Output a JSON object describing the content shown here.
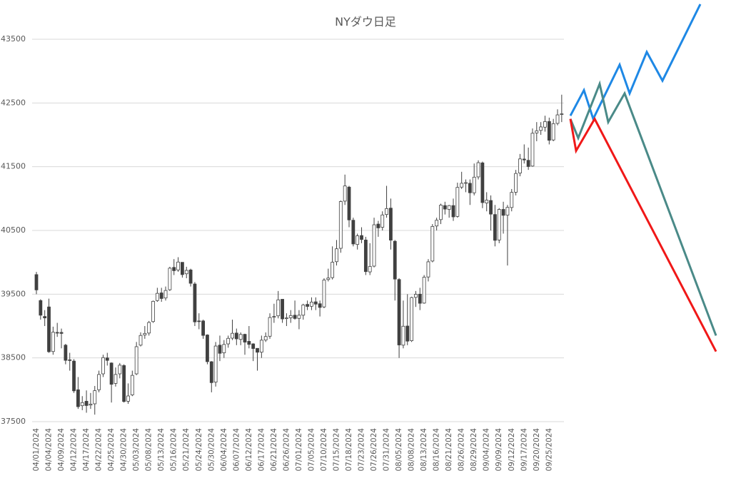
{
  "chart_data": {
    "type": "candlestick",
    "title": "NYダウ日足",
    "categories": [
      "04/01/2024",
      null,
      null,
      "04/04/2024",
      null,
      null,
      "04/09/2024",
      null,
      null,
      "04/12/2024",
      null,
      null,
      "04/17/2024",
      null,
      null,
      "04/22/2024",
      null,
      null,
      "04/25/2024",
      null,
      null,
      "04/30/2024",
      null,
      null,
      "05/03/2024",
      null,
      null,
      "05/08/2024",
      null,
      null,
      "05/13/2024",
      null,
      null,
      "05/16/2024",
      null,
      null,
      "05/21/2024",
      null,
      null,
      "05/24/2024",
      null,
      null,
      "05/30/2024",
      null,
      null,
      "06/04/2024",
      null,
      null,
      "06/07/2024",
      null,
      null,
      "06/12/2024",
      null,
      null,
      "06/17/2024",
      null,
      null,
      "06/21/2024",
      null,
      null,
      "06/26/2024",
      null,
      null,
      "07/01/2024",
      null,
      null,
      "07/05/2024",
      null,
      null,
      "07/10/2024",
      null,
      null,
      "07/15/2024",
      null,
      null,
      "07/18/2024",
      null,
      null,
      "07/23/2024",
      null,
      null,
      "07/26/2024",
      null,
      null,
      "07/31/2024",
      null,
      null,
      "08/05/2024",
      null,
      null,
      "08/08/2024",
      null,
      null,
      "08/13/2024",
      null,
      null,
      "08/16/2024",
      null,
      null,
      "08/21/2024",
      null,
      null,
      "08/26/2024",
      null,
      null,
      "08/29/2024",
      null,
      null,
      "09/04/2024",
      null,
      null,
      "09/09/2024",
      null,
      null,
      "09/12/2024",
      null,
      null,
      "09/17/2024",
      null,
      null,
      "09/20/2024",
      null,
      null,
      "09/25/2024",
      null,
      null,
      null
    ],
    "open": [
      39807,
      39400,
      39150,
      39300,
      38600,
      38900,
      38900,
      38700,
      38470,
      38450,
      38000,
      37750,
      37820,
      37760,
      37780,
      38000,
      38250,
      38500,
      38420,
      38100,
      38250,
      38380,
      37820,
      37920,
      38250,
      38700,
      38860,
      38890,
      39070,
      39400,
      39520,
      39440,
      39570,
      39920,
      39880,
      40000,
      39820,
      39880,
      39660,
      39080,
      39080,
      38860,
      38440,
      38120,
      38700,
      38580,
      38720,
      38810,
      38890,
      38790,
      38870,
      38760,
      38720,
      38650,
      38590,
      38780,
      38840,
      39140,
      39160,
      39420,
      39120,
      39130,
      39170,
      39120,
      39170,
      39340,
      39310,
      39380,
      39350,
      39300,
      39730,
      39760,
      40010,
      40220,
      40960,
      41180,
      40660,
      40280,
      40420,
      40350,
      39850,
      39940,
      40600,
      40550,
      40750,
      40850,
      40330,
      39730,
      38700,
      39000,
      38770,
      39450,
      39500,
      39360,
      39770,
      40020,
      40570,
      40670,
      40890,
      40830,
      40890,
      40720,
      41180,
      41250,
      41240,
      41090,
      41340,
      41560,
      40930,
      40970,
      40750,
      40350,
      40830,
      40740,
      40860,
      41100,
      41400,
      41620,
      41600,
      41510,
      42030,
      42070,
      42120,
      42210,
      41920,
      42180,
      42320
    ],
    "high": [
      39850,
      39420,
      39250,
      39430,
      38990,
      39050,
      38960,
      38720,
      38580,
      38480,
      38200,
      37900,
      37990,
      37950,
      38060,
      38300,
      38550,
      38580,
      38430,
      38350,
      38420,
      38400,
      38100,
      38300,
      38750,
      38900,
      39000,
      39080,
      39400,
      39600,
      39600,
      39620,
      39930,
      40050,
      40080,
      40000,
      39930,
      39900,
      39690,
      39200,
      39100,
      38870,
      38450,
      38750,
      38850,
      38780,
      38850,
      39100,
      38960,
      38900,
      38880,
      39000,
      38730,
      38650,
      38850,
      38900,
      39200,
      39350,
      39550,
      39420,
      39200,
      39250,
      39400,
      39250,
      39350,
      39400,
      39450,
      39450,
      39400,
      39750,
      39900,
      40250,
      40350,
      40970,
      41376,
      41200,
      40700,
      40450,
      40550,
      40400,
      40300,
      40700,
      40650,
      40800,
      41200,
      41000,
      40350,
      39750,
      39400,
      39500,
      39460,
      39550,
      39600,
      39800,
      40050,
      40600,
      40700,
      40920,
      40950,
      40900,
      41000,
      41250,
      41420,
      41300,
      41300,
      41550,
      41600,
      41580,
      41100,
      41050,
      40900,
      40850,
      40950,
      40900,
      41150,
      41450,
      41700,
      41850,
      41800,
      42100,
      42200,
      42200,
      42300,
      42270,
      42250,
      42400,
      42630
    ],
    "low": [
      39500,
      39100,
      39000,
      38580,
      38550,
      38830,
      38650,
      38400,
      38300,
      37950,
      37700,
      37680,
      37640,
      37700,
      37610,
      37960,
      38200,
      38380,
      37800,
      38050,
      38180,
      37800,
      37780,
      37900,
      38230,
      38680,
      38800,
      38850,
      39050,
      39380,
      39380,
      39400,
      39550,
      39800,
      39850,
      39760,
      39750,
      39620,
      39000,
      38950,
      38800,
      38400,
      37960,
      38050,
      38450,
      38500,
      38660,
      38780,
      38700,
      38700,
      38550,
      38650,
      38450,
      38300,
      38500,
      38750,
      38800,
      39050,
      39120,
      39050,
      39000,
      39050,
      39100,
      38950,
      39100,
      39250,
      39250,
      39250,
      39150,
      39280,
      39700,
      39730,
      39950,
      40150,
      40900,
      40550,
      40250,
      40200,
      40300,
      39800,
      39800,
      39920,
      40400,
      40500,
      40700,
      40200,
      39400,
      38500,
      38650,
      38700,
      38750,
      39300,
      39250,
      39350,
      39700,
      40000,
      40500,
      40600,
      40750,
      40700,
      40650,
      40700,
      41150,
      41100,
      40900,
      41050,
      41300,
      40850,
      40800,
      40500,
      40250,
      40300,
      40450,
      39950,
      40800,
      41050,
      41350,
      41550,
      41450,
      41500,
      41900,
      42000,
      42050,
      41850,
      41900,
      42150,
      42200
    ],
    "close": [
      39567,
      39170,
      39127,
      38597,
      38904,
      38892,
      38884,
      38462,
      38459,
      37983,
      37735,
      37799,
      37753,
      37775,
      37986,
      38240,
      38504,
      38461,
      38086,
      38240,
      38386,
      37816,
      37903,
      38226,
      38676,
      38852,
      38884,
      39056,
      39388,
      39513,
      39432,
      39558,
      39908,
      39869,
      40004,
      39807,
      39873,
      39671,
      39065,
      39070,
      38853,
      38441,
      38112,
      38686,
      38572,
      38711,
      38807,
      38886,
      38799,
      38868,
      38747,
      38712,
      38647,
      38589,
      38778,
      38835,
      39134,
      39150,
      39411,
      39112,
      39127,
      39164,
      39119,
      39170,
      39331,
      39308,
      39376,
      39344,
      39292,
      39721,
      39753,
      40001,
      40212,
      40954,
      41198,
      40665,
      40288,
      40415,
      40358,
      39854,
      39935,
      40589,
      40540,
      40743,
      40843,
      40348,
      39737,
      38703,
      38997,
      38763,
      39447,
      39498,
      39357,
      39766,
      40008,
      40563,
      40660,
      40897,
      40835,
      40890,
      40713,
      41175,
      41240,
      41250,
      41091,
      41336,
      41563,
      40937,
      40975,
      40756,
      40345,
      40830,
      40737,
      40862,
      41097,
      41394,
      41622,
      41606,
      41503,
      42025,
      42063,
      42124,
      42208,
      41915,
      42175,
      42313,
      42330
    ],
    "up_color": "#ffffff",
    "down_color": "#404040",
    "wick_color": "#404040",
    "projections": [
      {
        "color": "#1e88e5",
        "values": [
          42300,
          42700,
          42250,
          43100,
          42650,
          43300,
          42850,
          44050
        ]
      },
      {
        "color": "#4a8a88",
        "values": [
          42250,
          41950,
          42800,
          42200,
          42650,
          38850
        ]
      },
      {
        "color": "#f01818",
        "values": [
          42250,
          41750,
          42250,
          38600
        ]
      }
    ],
    "ylim": [
      37500,
      44100
    ],
    "yticks": [
      37500,
      38500,
      39500,
      40500,
      41500,
      42500,
      43500
    ],
    "grid": true
  }
}
